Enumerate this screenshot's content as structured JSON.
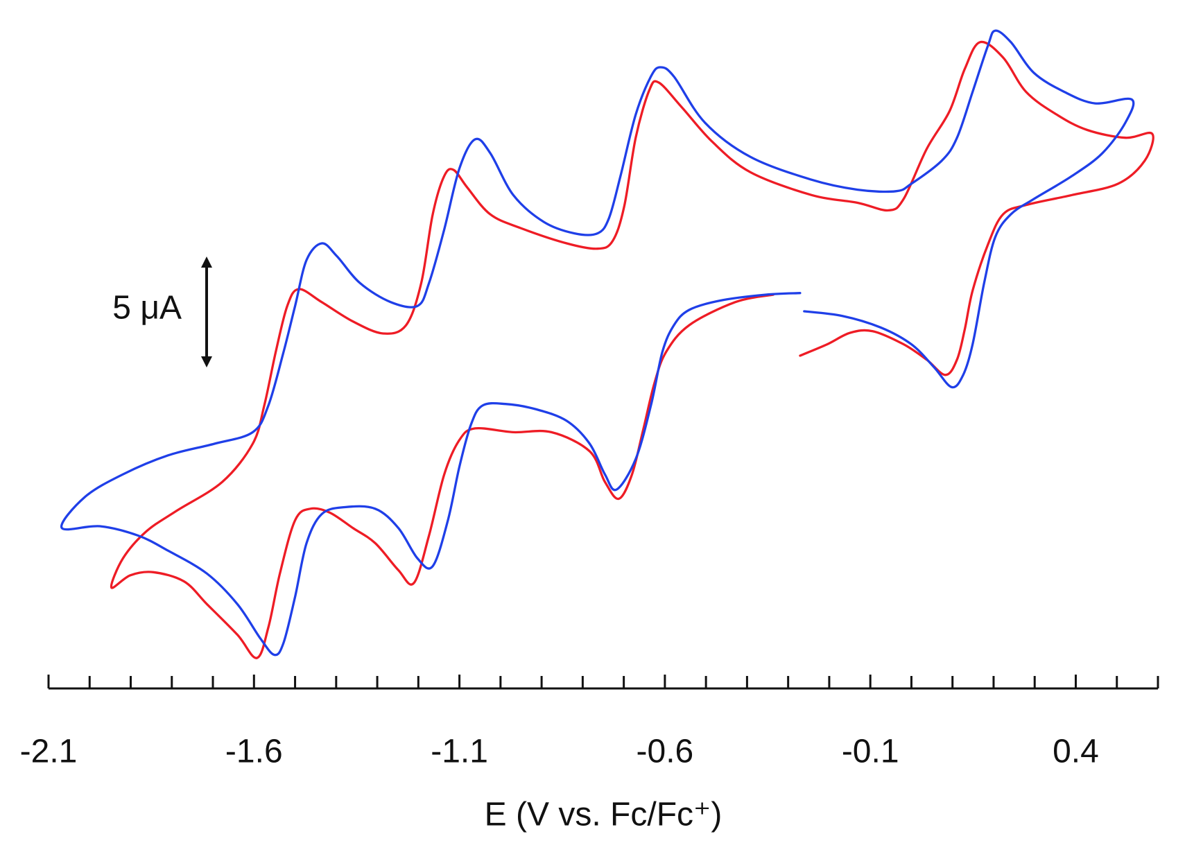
{
  "chart_data": {
    "type": "line",
    "xlabel": "E (V vs. Fc/Fc⁺)",
    "xlim": [
      -2.1,
      0.6
    ],
    "xticks": [
      -2.1,
      -1.6,
      -1.1,
      -0.6,
      -0.1,
      0.4
    ],
    "xminorticks": [
      -2.0,
      -1.9,
      -1.8,
      -1.7,
      -1.5,
      -1.4,
      -1.3,
      -1.2,
      -1.0,
      -0.9,
      -0.8,
      -0.7,
      -0.5,
      -0.4,
      -0.3,
      -0.2,
      0.0,
      0.1,
      0.2,
      0.3,
      0.5,
      0.6
    ],
    "ylim": [
      0,
      30
    ],
    "scale_bar": {
      "label": "5 μA",
      "value": 5
    },
    "series": [
      {
        "color": "#ee1c25",
        "x": [
          -0.336,
          -0.429,
          -0.541,
          -0.597,
          -0.625,
          -0.652,
          -0.68,
          -0.712,
          -0.746,
          -0.783,
          -0.876,
          -0.969,
          -1.062,
          -1.1,
          -1.137,
          -1.174,
          -1.211,
          -1.249,
          -1.305,
          -1.36,
          -1.416,
          -1.463,
          -1.5,
          -1.537,
          -1.565,
          -1.593,
          -1.64,
          -1.714,
          -1.77,
          -1.845,
          -1.901,
          -1.947,
          -1.919,
          -1.863,
          -1.789,
          -1.677,
          -1.603,
          -1.575,
          -1.547,
          -1.519,
          -1.491,
          -1.435,
          -1.36,
          -1.286,
          -1.23,
          -1.193,
          -1.165,
          -1.137,
          -1.114,
          -1.081,
          -1.025,
          -0.951,
          -0.839,
          -0.764,
          -0.727,
          -0.699,
          -0.671,
          -0.638,
          -0.615,
          -0.559,
          -0.485,
          -0.392,
          -0.243,
          -0.131,
          -0.056,
          -0.019,
          0.037,
          0.093,
          0.13,
          0.167,
          0.223,
          0.279,
          0.354,
          0.428,
          0.521,
          0.586,
          0.568,
          0.503,
          0.391,
          0.279,
          0.223,
          0.186,
          0.149,
          0.13,
          0.111,
          0.083,
          0.037,
          -0.019,
          -0.094,
          -0.149,
          -0.205,
          -0.271
        ],
        "values": [
          16.72,
          16.38,
          15.34,
          14.14,
          12.76,
          10.69,
          8.62,
          7.52,
          8.28,
          9.66,
          10.52,
          10.52,
          10.69,
          10.17,
          8.62,
          5.86,
          3.72,
          4.31,
          5.52,
          6.21,
          6.9,
          7.07,
          6.55,
          4.14,
          1.72,
          0.34,
          1.38,
          2.76,
          3.79,
          4.21,
          4.07,
          3.52,
          4.83,
          6.03,
          6.97,
          8.28,
          10.0,
          11.72,
          14.14,
          16.21,
          16.97,
          16.38,
          15.52,
          14.97,
          15.34,
          17.24,
          20.34,
          22.07,
          22.34,
          21.55,
          20.34,
          19.72,
          19.03,
          18.79,
          19.14,
          20.69,
          23.79,
          25.93,
          26.28,
          25.17,
          23.62,
          22.24,
          21.21,
          20.86,
          20.52,
          21.03,
          23.28,
          25.0,
          26.9,
          28.1,
          27.41,
          25.86,
          24.83,
          24.14,
          23.79,
          23.97,
          22.76,
          21.72,
          21.21,
          20.76,
          20.34,
          18.97,
          16.9,
          15.17,
          13.79,
          13.1,
          13.79,
          14.48,
          15.07,
          15.0,
          14.48,
          13.97
        ]
      },
      {
        "color": "#1f3fe8",
        "x": [
          -0.271,
          -0.354,
          -0.466,
          -0.541,
          -0.578,
          -0.606,
          -0.634,
          -0.671,
          -0.718,
          -0.746,
          -0.783,
          -0.839,
          -0.913,
          -0.988,
          -1.044,
          -1.072,
          -1.1,
          -1.128,
          -1.165,
          -1.202,
          -1.249,
          -1.305,
          -1.379,
          -1.435,
          -1.472,
          -1.5,
          -1.528,
          -1.55,
          -1.584,
          -1.64,
          -1.714,
          -1.808,
          -1.882,
          -1.975,
          -2.068,
          -2.012,
          -1.919,
          -1.808,
          -1.696,
          -1.603,
          -1.565,
          -1.528,
          -1.5,
          -1.472,
          -1.435,
          -1.398,
          -1.342,
          -1.267,
          -1.202,
          -1.174,
          -1.137,
          -1.1,
          -1.062,
          -1.025,
          -0.969,
          -0.895,
          -0.82,
          -0.764,
          -0.736,
          -0.708,
          -0.671,
          -0.634,
          -0.611,
          -0.578,
          -0.503,
          -0.392,
          -0.243,
          -0.131,
          -0.038,
          0.0,
          0.074,
          0.111,
          0.149,
          0.186,
          0.204,
          0.242,
          0.298,
          0.372,
          0.447,
          0.536,
          0.521,
          0.465,
          0.391,
          0.298,
          0.242,
          0.204,
          0.177,
          0.149,
          0.126,
          0.098,
          0.055,
          0.0,
          -0.075,
          -0.168,
          -0.261
        ],
        "values": [
          16.79,
          16.72,
          16.45,
          16.03,
          15.34,
          14.14,
          11.72,
          9.31,
          7.93,
          8.62,
          10.0,
          11.03,
          11.55,
          11.79,
          11.72,
          10.86,
          8.97,
          6.55,
          4.48,
          4.83,
          6.21,
          7.07,
          7.14,
          6.83,
          5.52,
          3.1,
          1.03,
          0.48,
          1.21,
          2.76,
          4.14,
          5.17,
          5.86,
          6.28,
          6.21,
          7.59,
          8.62,
          9.48,
          10.0,
          10.52,
          11.72,
          14.14,
          16.21,
          18.28,
          19.03,
          18.45,
          17.24,
          16.38,
          16.21,
          17.24,
          19.66,
          22.41,
          23.72,
          23.1,
          21.21,
          20.0,
          19.48,
          19.48,
          20.17,
          22.07,
          24.83,
          26.55,
          26.97,
          26.55,
          24.48,
          22.93,
          21.9,
          21.45,
          21.38,
          21.72,
          22.76,
          23.79,
          25.86,
          27.93,
          28.62,
          28.1,
          26.72,
          25.86,
          25.34,
          25.52,
          24.48,
          23.1,
          22.07,
          21.03,
          20.34,
          19.31,
          17.24,
          14.48,
          13.1,
          12.55,
          13.45,
          14.48,
          15.24,
          15.76,
          15.97
        ]
      }
    ]
  }
}
